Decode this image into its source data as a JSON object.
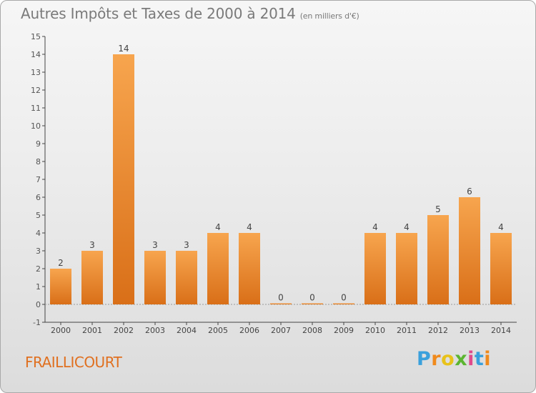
{
  "title": "Autres Impôts et Taxes de 2000 à 2014",
  "unit": "(en milliers d'€)",
  "commune": "FRAILLICOURT",
  "logo": "Proxiti",
  "colors": {
    "bar_light": "#f7a54e",
    "bar_dark": "#d96f18",
    "axis": "#444444",
    "grid": "#999999"
  },
  "chart_data": {
    "type": "bar",
    "categories": [
      "2000",
      "2001",
      "2002",
      "2003",
      "2004",
      "2005",
      "2006",
      "2007",
      "2008",
      "2009",
      "2010",
      "2011",
      "2012",
      "2013",
      "2014"
    ],
    "values": [
      2,
      3,
      14,
      3,
      3,
      4,
      4,
      0,
      0,
      0,
      4,
      4,
      5,
      6,
      4
    ],
    "ylim": [
      -1,
      15
    ],
    "yticks": [
      -1,
      0,
      1,
      2,
      3,
      4,
      5,
      6,
      7,
      8,
      9,
      10,
      11,
      12,
      13,
      14,
      15
    ],
    "title": "Autres Impôts et Taxes de 2000 à 2014",
    "xlabel": "",
    "ylabel": "",
    "grid": false,
    "legend": "none"
  }
}
